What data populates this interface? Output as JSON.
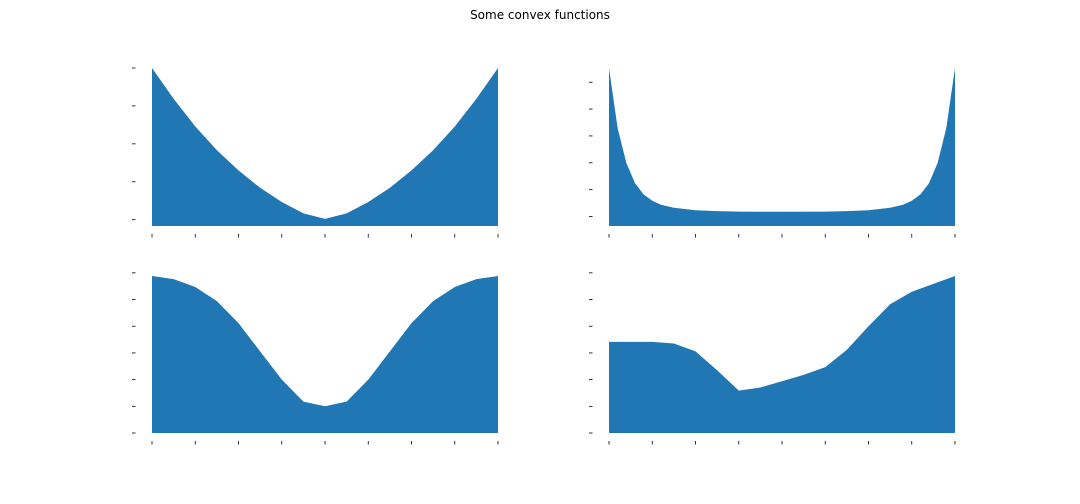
{
  "figure": {
    "title": "Some convex functions",
    "fill_color": "#2077b4"
  },
  "chart_data": [
    {
      "type": "area",
      "grid": false,
      "xlim": [
        -1,
        1
      ],
      "ylim": [
        0,
        1
      ],
      "x_ticks": [
        -1,
        -0.75,
        -0.5,
        -0.25,
        0,
        0.25,
        0.5,
        0.75,
        1
      ],
      "y_ticks": [
        0.04,
        0.28,
        0.52,
        0.76,
        1.0
      ],
      "series": [
        {
          "x": [
            -1,
            -0.875,
            -0.75,
            -0.625,
            -0.5,
            -0.375,
            -0.25,
            -0.125,
            0,
            0.125,
            0.25,
            0.375,
            0.5,
            0.625,
            0.75,
            0.875,
            1
          ],
          "y": [
            1.0,
            0.806,
            0.63,
            0.48,
            0.352,
            0.242,
            0.152,
            0.08,
            0.045,
            0.08,
            0.152,
            0.242,
            0.352,
            0.48,
            0.63,
            0.806,
            1.0
          ]
        }
      ]
    },
    {
      "type": "area",
      "grid": false,
      "xlim": [
        -1,
        1
      ],
      "ylim": [
        0,
        1
      ],
      "x_ticks": [
        -1,
        -0.75,
        -0.5,
        -0.25,
        0,
        0.25,
        0.5,
        0.75,
        1
      ],
      "y_ticks": [
        0.06,
        0.23,
        0.4,
        0.57,
        0.74,
        0.91
      ],
      "series": [
        {
          "x": [
            -1,
            -0.95,
            -0.9,
            -0.85,
            -0.8,
            -0.75,
            -0.7,
            -0.625,
            -0.5,
            -0.375,
            -0.25,
            0,
            0.25,
            0.375,
            0.5,
            0.625,
            0.7,
            0.75,
            0.8,
            0.85,
            0.9,
            0.95,
            1
          ],
          "y": [
            1.0,
            0.62,
            0.4,
            0.27,
            0.2,
            0.16,
            0.135,
            0.115,
            0.1,
            0.094,
            0.091,
            0.09,
            0.091,
            0.094,
            0.1,
            0.115,
            0.135,
            0.16,
            0.2,
            0.27,
            0.4,
            0.62,
            1.0
          ]
        }
      ]
    },
    {
      "type": "area",
      "grid": false,
      "xlim": [
        -1,
        1
      ],
      "ylim": [
        0,
        1
      ],
      "x_ticks": [
        -1,
        -0.75,
        -0.5,
        -0.25,
        0,
        0.25,
        0.5,
        0.75,
        1
      ],
      "y_ticks": [
        0.0,
        0.17,
        0.34,
        0.51,
        0.68,
        0.85,
        1.02
      ],
      "series": [
        {
          "x": [
            -1,
            -0.875,
            -0.75,
            -0.625,
            -0.5,
            -0.375,
            -0.25,
            -0.125,
            0,
            0.125,
            0.25,
            0.375,
            0.5,
            0.625,
            0.75,
            0.875,
            1
          ],
          "y": [
            1.0,
            0.98,
            0.93,
            0.84,
            0.7,
            0.52,
            0.34,
            0.2,
            0.17,
            0.2,
            0.34,
            0.52,
            0.7,
            0.84,
            0.93,
            0.98,
            1.0
          ]
        }
      ]
    },
    {
      "type": "area",
      "grid": false,
      "xlim": [
        -1,
        1
      ],
      "ylim": [
        0,
        1
      ],
      "x_ticks": [
        -1,
        -0.75,
        -0.5,
        -0.25,
        0,
        0.25,
        0.5,
        0.75,
        1
      ],
      "y_ticks": [
        0.0,
        0.17,
        0.34,
        0.51,
        0.68,
        0.85,
        1.02
      ],
      "series": [
        {
          "x": [
            -1,
            -0.75,
            -0.625,
            -0.5,
            -0.375,
            -0.25,
            -0.125,
            0,
            0.125,
            0.25,
            0.375,
            0.5,
            0.625,
            0.75,
            0.875,
            1
          ],
          "y": [
            0.58,
            0.58,
            0.57,
            0.52,
            0.4,
            0.27,
            0.29,
            0.33,
            0.37,
            0.42,
            0.53,
            0.68,
            0.82,
            0.9,
            0.95,
            1.0
          ]
        }
      ]
    }
  ]
}
